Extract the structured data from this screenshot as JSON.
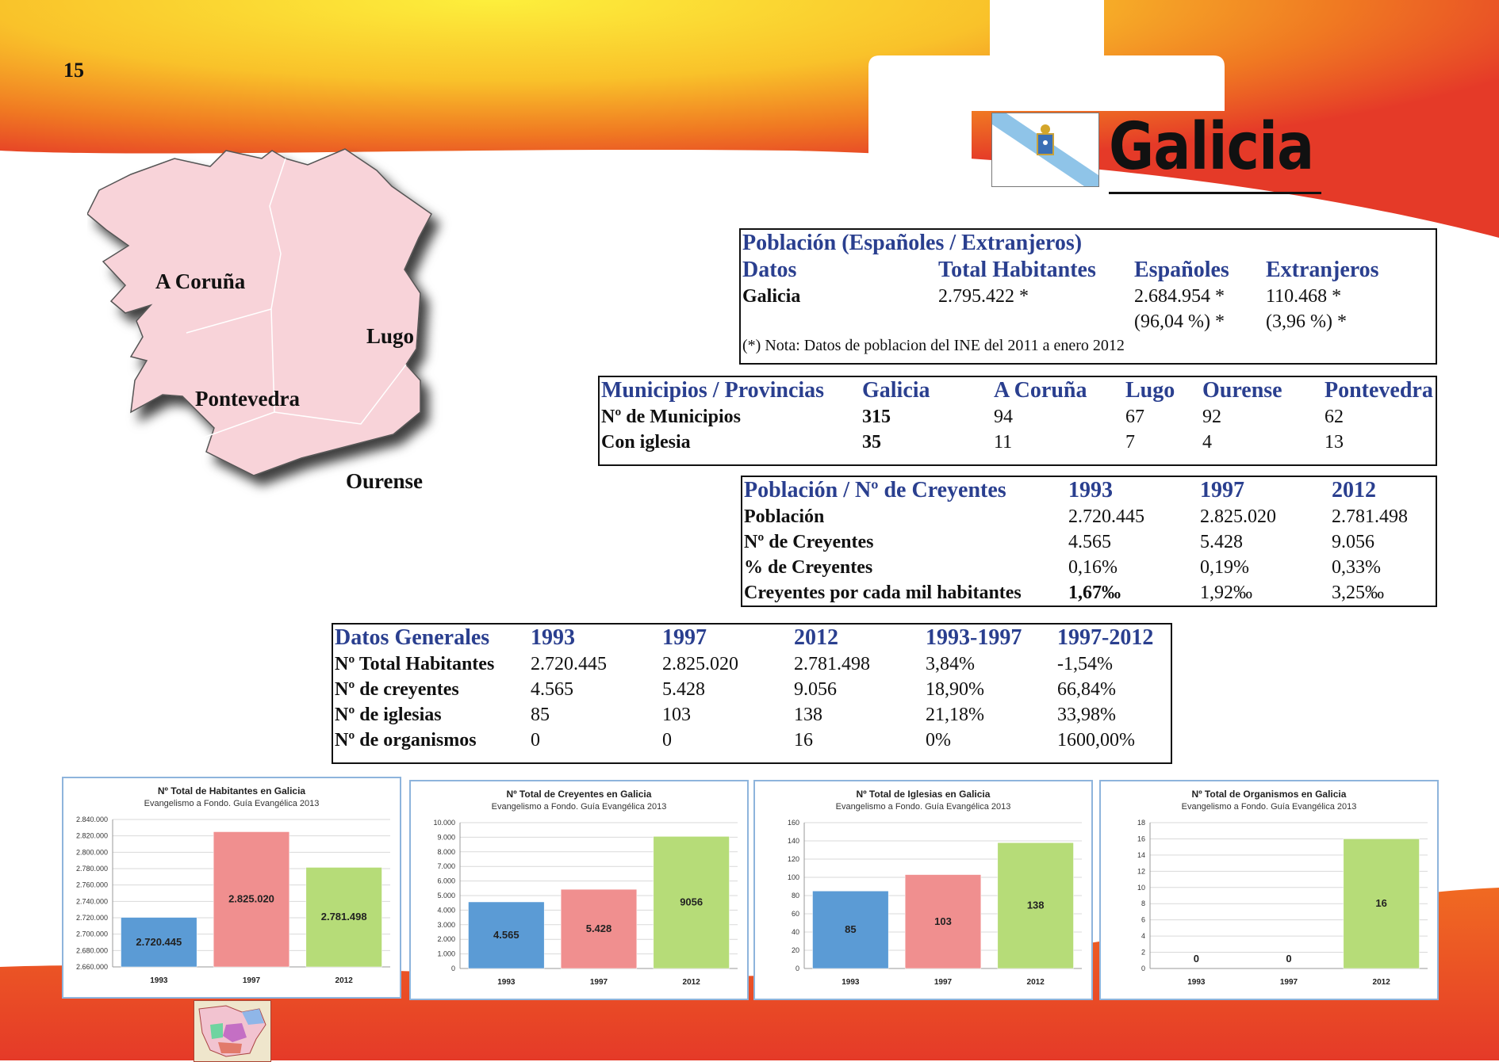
{
  "page_number": "15",
  "title": "Galicia",
  "colors": {
    "heading_blue": "#2a3f8f",
    "bar_blue": "#5b9bd5",
    "bar_red": "#f08f8f",
    "bar_green": "#b6dc78",
    "bg_red": "#e8342a",
    "bg_yellow": "#fbe43a"
  },
  "map": {
    "provinces": [
      "A Coruña",
      "Lugo",
      "Pontevedra",
      "Ourense"
    ]
  },
  "poblacion": {
    "caption": "Población (Españoles / Extranjeros)",
    "headers": [
      "Datos",
      "Total Habitantes",
      "Españoles",
      "Extranjeros"
    ],
    "row": [
      "Galicia",
      "2.795.422 *",
      "2.684.954 *",
      "110.468 *"
    ],
    "row2": [
      "",
      "",
      "(96,04 %) *",
      "(3,96 %) *"
    ],
    "note": "(*) Nota: Datos de poblacion del INE del 2011 a enero 2012"
  },
  "municipios": {
    "headers": [
      "Municipios / Provincias",
      "Galicia",
      "A Coruña",
      "Lugo",
      "Ourense",
      "Pontevedra"
    ],
    "rows": [
      [
        "Nº de Municipios",
        "315",
        "94",
        "67",
        "92",
        "62"
      ],
      [
        "Con iglesia",
        "35",
        "11",
        "7",
        "4",
        "13"
      ]
    ]
  },
  "creyentes": {
    "headers": [
      "Población / Nº de Creyentes",
      "1993",
      "1997",
      "2012"
    ],
    "rows": [
      [
        "Población",
        "2.720.445",
        "2.825.020",
        "2.781.498"
      ],
      [
        "Nº de Creyentes",
        "4.565",
        "5.428",
        "9.056"
      ],
      [
        "% de Creyentes",
        "0,16%",
        "0,19%",
        "0,33%"
      ],
      [
        "Creyentes por cada mil habitantes",
        "1,67‰",
        "1,92‰",
        "3,25‰"
      ]
    ]
  },
  "generales": {
    "headers": [
      "Datos Generales",
      "1993",
      "1997",
      "2012",
      "1993-1997",
      "1997-2012"
    ],
    "rows": [
      [
        "Nº Total Habitantes",
        "2.720.445",
        "2.825.020",
        "2.781.498",
        "3,84%",
        "-1,54%"
      ],
      [
        "Nº de creyentes",
        "4.565",
        "5.428",
        "9.056",
        "18,90%",
        "66,84%"
      ],
      [
        "Nº de iglesias",
        "85",
        "103",
        "138",
        "21,18%",
        "33,98%"
      ],
      [
        "Nº de organismos",
        "0",
        "0",
        "16",
        "0%",
        "1600,00%"
      ]
    ]
  },
  "chart_data": [
    {
      "type": "bar",
      "title": "Nº Total de Habitantes en Galicia",
      "subtitle": "Evangelismo a Fondo. Guía Evangélica 2013",
      "categories": [
        "1993",
        "1997",
        "2012"
      ],
      "values": [
        2720445,
        2825020,
        2781498
      ],
      "data_labels": [
        "2.720.445",
        "2.825.020",
        "2.781.498"
      ],
      "ylim": [
        2660000,
        2840000
      ],
      "yticks": [
        2660000,
        2680000,
        2700000,
        2720000,
        2740000,
        2760000,
        2780000,
        2800000,
        2820000,
        2840000
      ],
      "ytick_labels": [
        "2.660.000",
        "2.680.000",
        "2.700.000",
        "2.720.000",
        "2.740.000",
        "2.760.000",
        "2.780.000",
        "2.800.000",
        "2.820.000",
        "2.840.000"
      ],
      "grid": true
    },
    {
      "type": "bar",
      "title": "Nº Total de Creyentes en Galicia",
      "subtitle": "Evangelismo a Fondo. Guía Evangélica 2013",
      "categories": [
        "1993",
        "1997",
        "2012"
      ],
      "values": [
        4565,
        5428,
        9056
      ],
      "data_labels": [
        "4.565",
        "5.428",
        "9056"
      ],
      "ylim": [
        0,
        10000
      ],
      "yticks": [
        0,
        1000,
        2000,
        3000,
        4000,
        5000,
        6000,
        7000,
        8000,
        9000,
        10000
      ],
      "ytick_labels": [
        "0",
        "1.000",
        "2.000",
        "3.000",
        "4.000",
        "5.000",
        "6.000",
        "7.000",
        "8.000",
        "9.000",
        "10.000"
      ],
      "grid": true
    },
    {
      "type": "bar",
      "title": "Nº Total de Iglesias en Galicia",
      "subtitle": "Evangelismo a Fondo. Guía Evangélica 2013",
      "categories": [
        "1993",
        "1997",
        "2012"
      ],
      "values": [
        85,
        103,
        138
      ],
      "data_labels": [
        "85",
        "103",
        "138"
      ],
      "ylim": [
        0,
        160
      ],
      "yticks": [
        0,
        20,
        40,
        60,
        80,
        100,
        120,
        140,
        160
      ],
      "ytick_labels": [
        "0",
        "20",
        "40",
        "60",
        "80",
        "100",
        "120",
        "140",
        "160"
      ],
      "grid": true
    },
    {
      "type": "bar",
      "title": "Nº Total de Organismos en Galicia",
      "subtitle": "Evangelismo a Fondo. Guía Evangélica 2013",
      "categories": [
        "1993",
        "1997",
        "2012"
      ],
      "values": [
        0,
        0,
        16
      ],
      "data_labels": [
        "0",
        "0",
        "16"
      ],
      "ylim": [
        0,
        18
      ],
      "yticks": [
        0,
        2,
        4,
        6,
        8,
        10,
        12,
        14,
        16,
        18
      ],
      "ytick_labels": [
        "0",
        "2",
        "4",
        "6",
        "8",
        "10",
        "12",
        "14",
        "16",
        "18"
      ],
      "grid": true
    }
  ]
}
